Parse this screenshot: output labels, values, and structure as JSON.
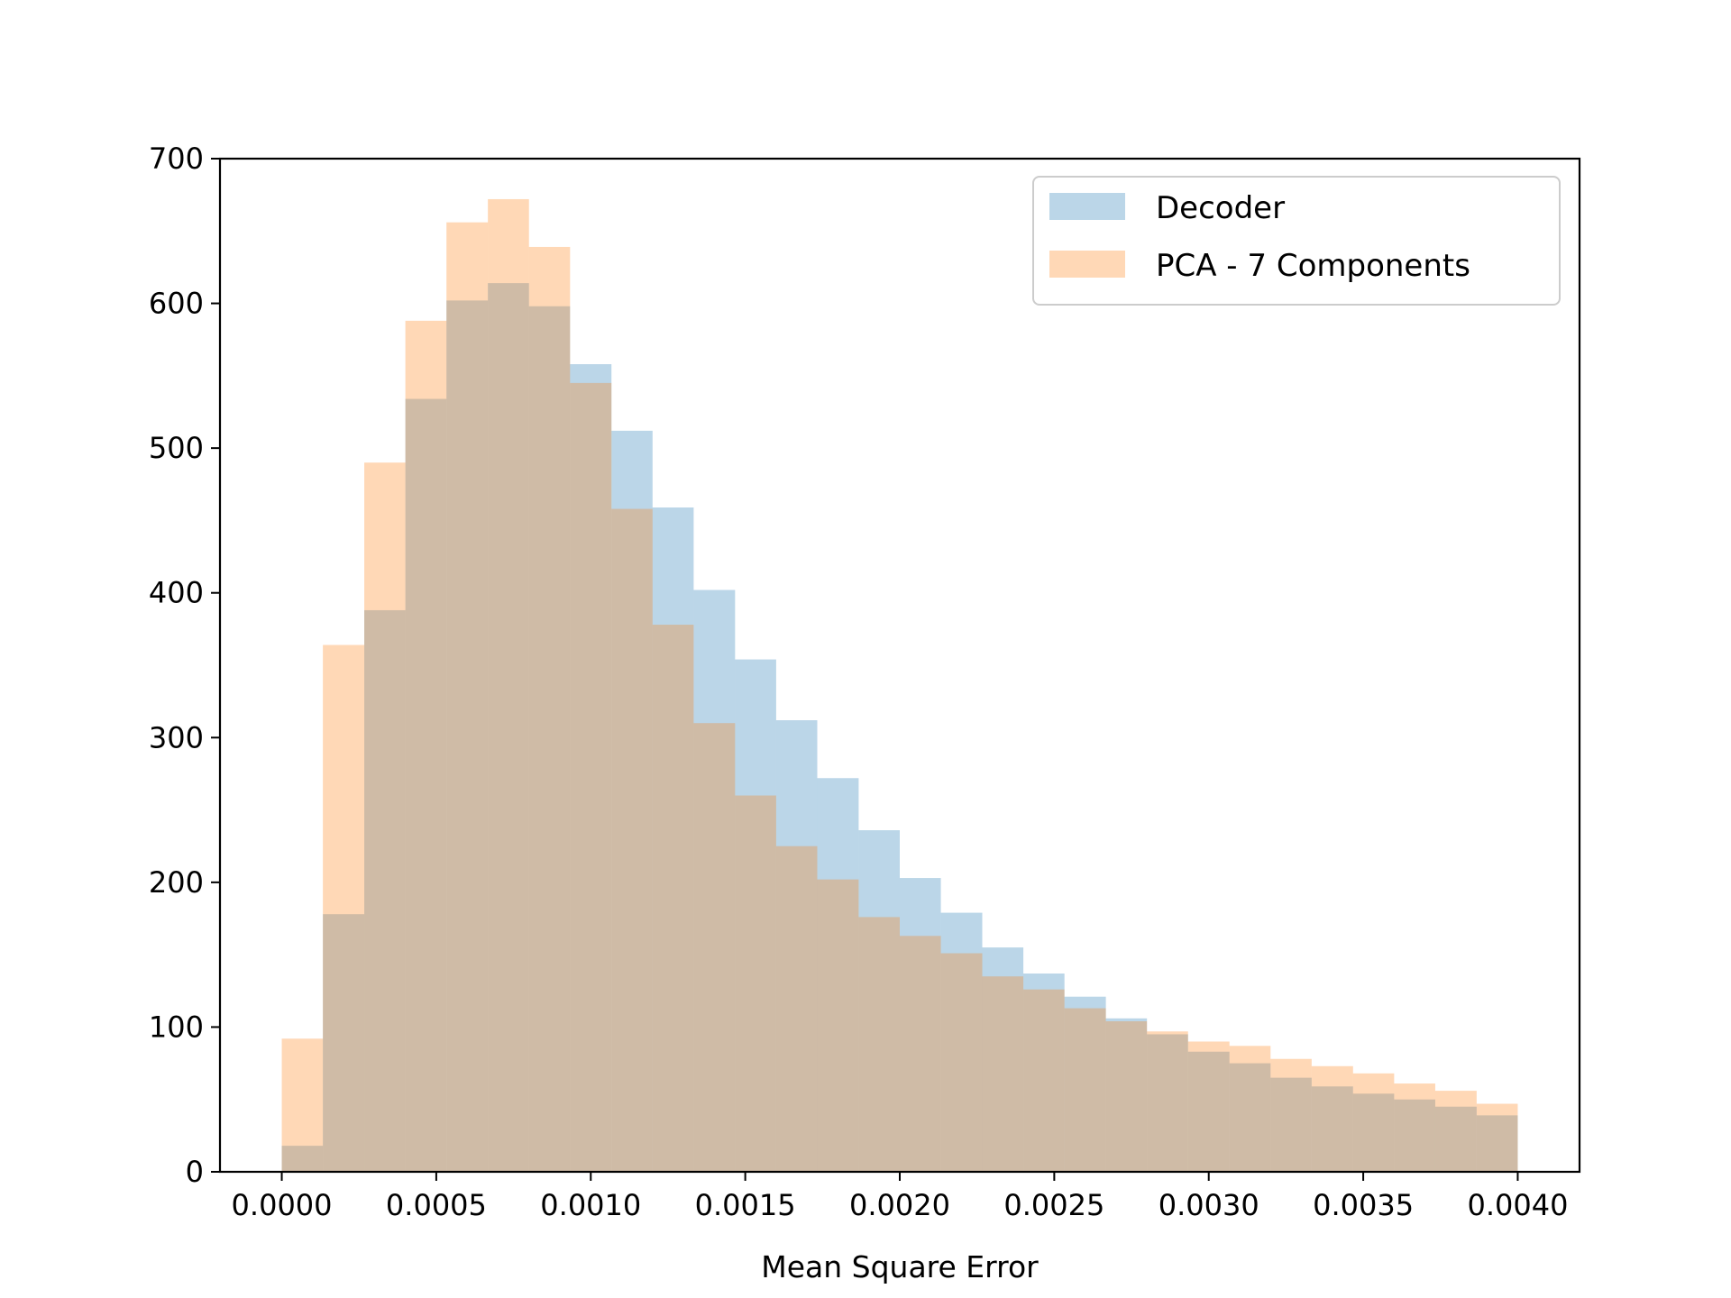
{
  "chart_data": {
    "type": "histogram",
    "xlabel": "Mean Square Error",
    "ylabel": "",
    "title": "",
    "xlim": [
      -0.0002,
      0.0042
    ],
    "ylim": [
      0,
      700
    ],
    "x_ticks": [
      0.0,
      0.0005,
      0.001,
      0.0015,
      0.002,
      0.0025,
      0.003,
      0.0035,
      0.004
    ],
    "x_tick_labels": [
      "0.0000",
      "0.0005",
      "0.0010",
      "0.0015",
      "0.0020",
      "0.0025",
      "0.0030",
      "0.0035",
      "0.0040"
    ],
    "y_ticks": [
      0,
      100,
      200,
      300,
      400,
      500,
      600,
      700
    ],
    "y_tick_labels": [
      "0",
      "100",
      "200",
      "300",
      "400",
      "500",
      "600",
      "700"
    ],
    "bin_edges": [
      0.0,
      0.000133,
      0.000267,
      0.0004,
      0.000533,
      0.000667,
      0.0008,
      0.000933,
      0.001067,
      0.0012,
      0.001333,
      0.001467,
      0.0016,
      0.001733,
      0.001867,
      0.002,
      0.002133,
      0.002267,
      0.0024,
      0.002533,
      0.002667,
      0.0028,
      0.002933,
      0.003067,
      0.0032,
      0.003333,
      0.003467,
      0.0036,
      0.003733,
      0.003867,
      0.004
    ],
    "legend_position": "top-right",
    "series": [
      {
        "name": "Decoder",
        "color": "#1f77b4",
        "alpha": 0.3,
        "values": [
          18,
          178,
          388,
          534,
          602,
          614,
          598,
          558,
          512,
          459,
          402,
          354,
          312,
          272,
          236,
          203,
          179,
          155,
          137,
          121,
          106,
          95,
          83,
          75,
          65,
          59,
          54,
          50,
          45,
          39
        ]
      },
      {
        "name": "PCA - 7 Components",
        "color": "#ff7f0e",
        "alpha": 0.3,
        "values": [
          92,
          364,
          490,
          588,
          656,
          672,
          639,
          545,
          458,
          378,
          310,
          260,
          225,
          202,
          176,
          163,
          151,
          135,
          126,
          113,
          104,
          97,
          90,
          87,
          78,
          73,
          68,
          61,
          56,
          47
        ]
      }
    ]
  }
}
